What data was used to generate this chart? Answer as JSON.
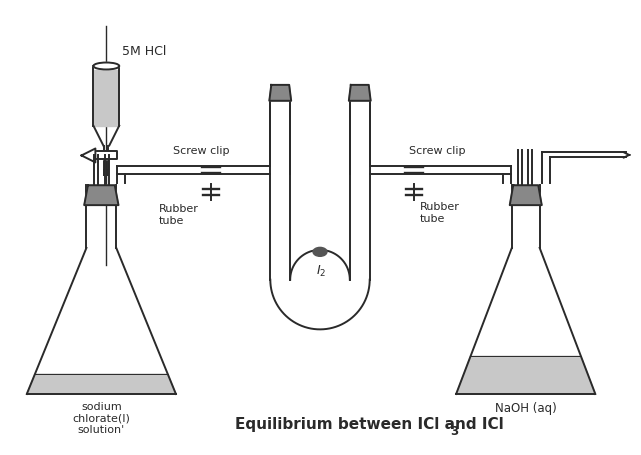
{
  "bg_color": "#ffffff",
  "line_color": "#2a2a2a",
  "gray_fill": "#888888",
  "light_gray": "#c8c8c8",
  "title": "Equilibrium between ICl and ICl",
  "title_sub": "3",
  "label_5mhcl": "5M HCl",
  "label_screw1": "Screw clip",
  "label_screw2": "Screw clip",
  "label_rubber1": "Rubber\ntube",
  "label_rubber2": "Rubber\ntube",
  "label_I2": "$I_2$",
  "label_sodium": "sodium\nchlorate(I)\nsolution'",
  "label_naoh": "NaOH (aq)"
}
